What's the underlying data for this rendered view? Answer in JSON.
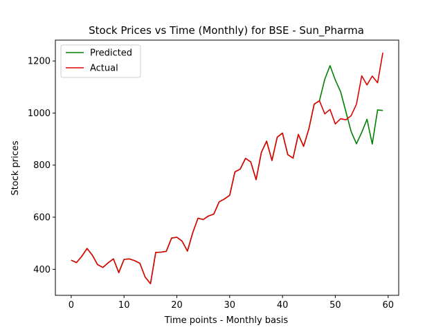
{
  "chart_data": {
    "type": "line",
    "title": "Stock Prices vs Time (Monthly) for BSE - Sun_Pharma",
    "xlabel": "Time points - Monthly basis",
    "ylabel": "Stock prices",
    "xlim": [
      -3,
      62
    ],
    "ylim": [
      300,
      1280
    ],
    "xticks": [
      0,
      10,
      20,
      30,
      40,
      50,
      60
    ],
    "yticks": [
      400,
      600,
      800,
      1000,
      1200
    ],
    "grid": false,
    "legend_position": "top-left",
    "series": [
      {
        "name": "Predicted",
        "color": "#008000",
        "values": [
          435,
          426,
          450,
          480,
          454,
          418,
          407,
          425,
          440,
          387,
          438,
          440,
          433,
          423,
          370,
          345,
          465,
          466,
          469,
          520,
          523,
          508,
          470,
          540,
          596,
          591,
          605,
          612,
          659,
          670,
          684,
          774,
          785,
          826,
          812,
          744,
          849,
          892,
          818,
          907,
          923,
          840,
          827,
          918,
          872,
          940,
          1034,
          1047,
          1130,
          1182,
          1127,
          1082,
          1005,
          929,
          882,
          926,
          976,
          881,
          1012,
          1010
        ]
      },
      {
        "name": "Actual",
        "color": "#e00000",
        "values": [
          435,
          426,
          450,
          480,
          454,
          418,
          407,
          425,
          440,
          387,
          438,
          440,
          433,
          423,
          370,
          345,
          465,
          466,
          469,
          520,
          523,
          508,
          470,
          540,
          596,
          591,
          605,
          612,
          659,
          670,
          684,
          774,
          785,
          826,
          812,
          744,
          849,
          892,
          818,
          907,
          923,
          840,
          827,
          918,
          872,
          940,
          1034,
          1047,
          997,
          1014,
          958,
          978,
          974,
          990,
          1034,
          1143,
          1108,
          1142,
          1116,
          1232
        ]
      }
    ]
  }
}
